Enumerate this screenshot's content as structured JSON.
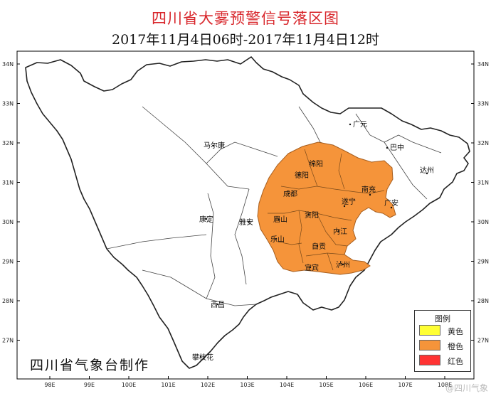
{
  "title": "四川省大雾预警信号落区图",
  "subtitle": "2017年11月4日06时-2017年11月4日12时",
  "credit": "四川省气象台制作",
  "watermark": "@四川气象",
  "colors": {
    "warning": "#f5943a",
    "warning_stroke": "#9a5a1c",
    "boundary": "#222222",
    "frame": "#000000"
  },
  "legend": {
    "title": "图例",
    "items": [
      {
        "label": "黄色",
        "color": "#ffff33"
      },
      {
        "label": "橙色",
        "color": "#f5943a"
      },
      {
        "label": "红色",
        "color": "#ff3333"
      }
    ]
  },
  "axes": {
    "lon_labels": [
      "98E",
      "99E",
      "100E",
      "101E",
      "102E",
      "103E",
      "104E",
      "105E",
      "106E",
      "107E",
      "108E"
    ],
    "lat_labels": [
      "34N",
      "33N",
      "32N",
      "31N",
      "30N",
      "29N",
      "28N",
      "27N"
    ]
  },
  "cities": [
    "广元",
    "巴中",
    "达州",
    "绵阳",
    "德阳",
    "南充",
    "成都",
    "遂宁",
    "广安",
    "雅安",
    "眉山",
    "资阳",
    "内江",
    "乐山",
    "自贡",
    "泸州",
    "宜宾",
    "马尔康",
    "康定",
    "西昌",
    "攀枝花"
  ]
}
